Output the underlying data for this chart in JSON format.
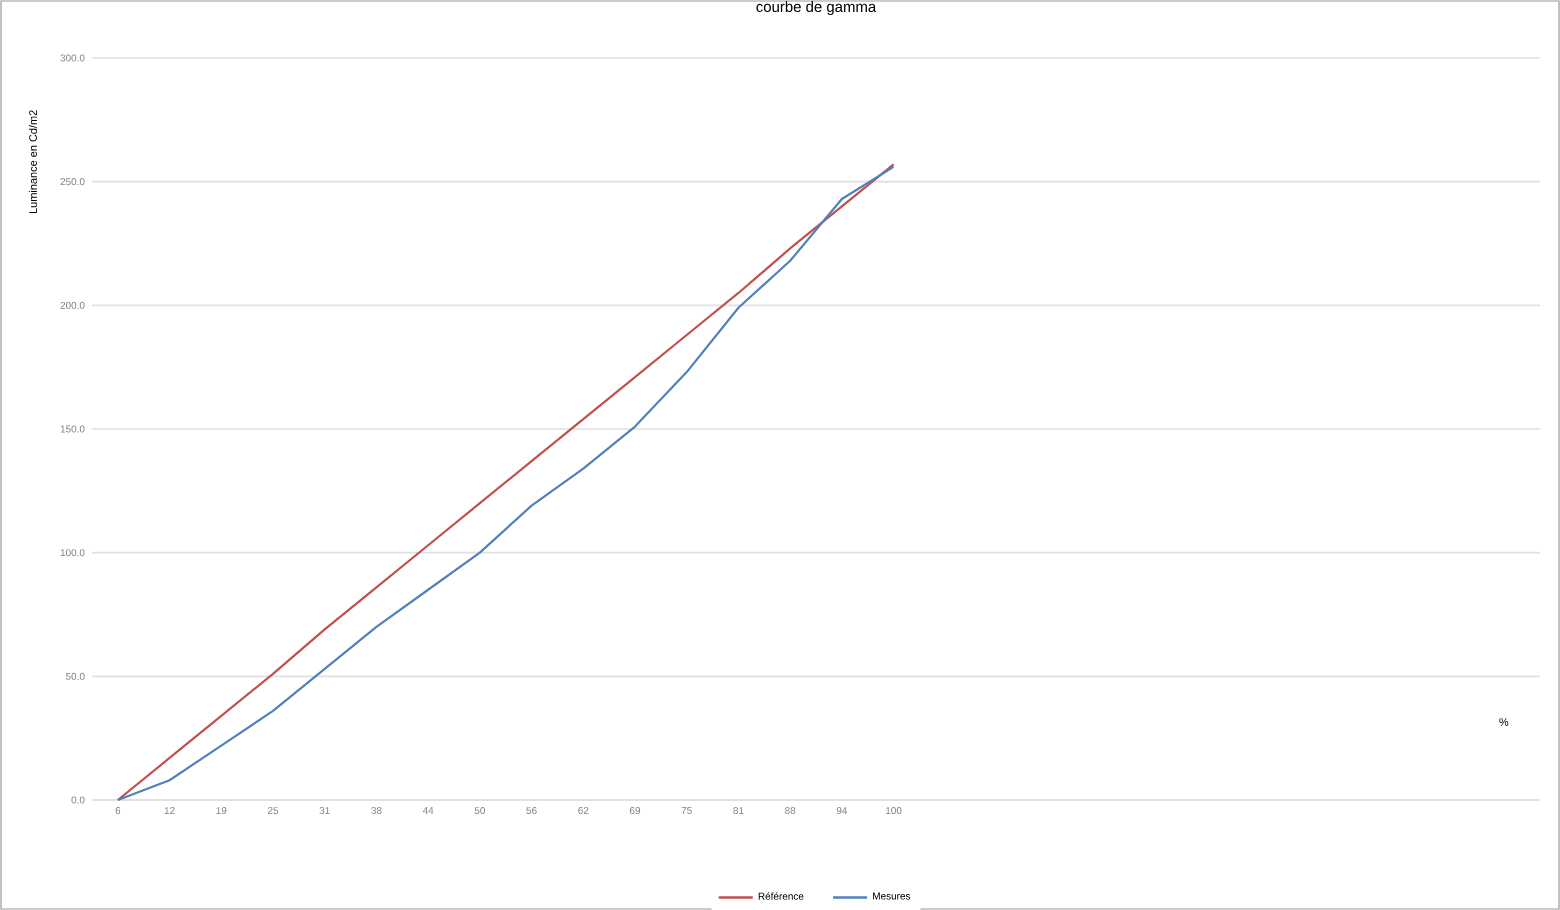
{
  "chart_data": {
    "type": "line",
    "title": "courbe de gamma",
    "annotations": [
      "%"
    ],
    "ylabel": "Luminance en Cd/m2",
    "categories": [
      "6",
      "12",
      "19",
      "25",
      "31",
      "38",
      "44",
      "50",
      "56",
      "62",
      "69",
      "75",
      "81",
      "88",
      "94",
      "100"
    ],
    "series": [
      {
        "name": "Référence",
        "color": "#c0504d",
        "values": [
          0,
          17,
          34,
          51,
          69,
          86,
          103,
          120,
          137,
          154,
          171,
          188,
          205,
          223,
          240,
          257
        ]
      },
      {
        "name": "Mesures",
        "color": "#4f81bd",
        "values": [
          0,
          8,
          22,
          36,
          53,
          70,
          85,
          100,
          119,
          134,
          151,
          173,
          199,
          218,
          243,
          256
        ]
      }
    ],
    "ylim": [
      0,
      300
    ],
    "yticks": [
      {
        "value": 0,
        "label": "0.0"
      },
      {
        "value": 50,
        "label": "50.0"
      },
      {
        "value": 100,
        "label": "100.0"
      },
      {
        "value": 150,
        "label": "150.0"
      },
      {
        "value": 200,
        "label": "200.0"
      },
      {
        "value": 250,
        "label": "250.0"
      },
      {
        "value": 300,
        "label": "300.0"
      }
    ],
    "grid": "y",
    "legend": "bottom",
    "marker": "none",
    "line_style": "solid"
  }
}
